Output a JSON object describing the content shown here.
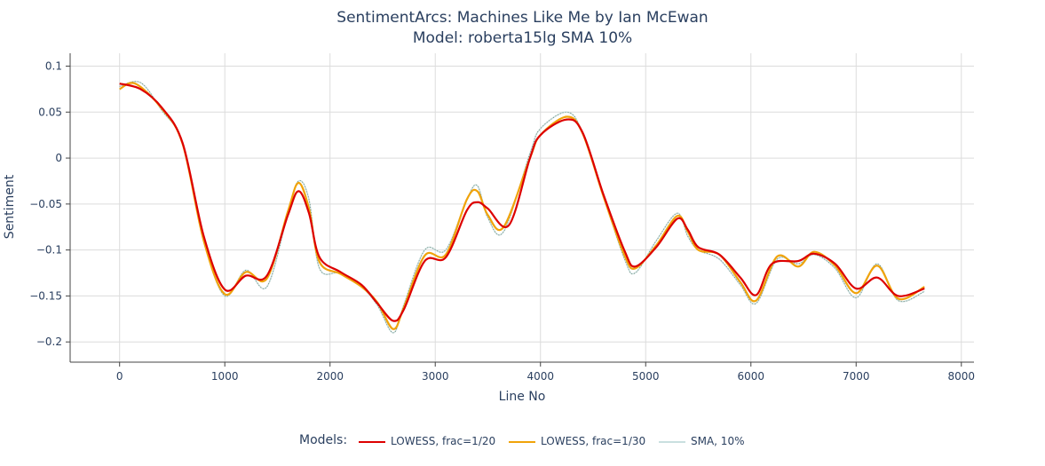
{
  "chart_data": {
    "type": "line",
    "title": "SentimentArcs: Machines Like Me by Ian McEwan",
    "subtitle": "Model: roberta15lg SMA 10%",
    "xlabel": "Line No",
    "ylabel": "Sentiment",
    "xlim": [
      -470,
      8120
    ],
    "ylim": [
      -0.222,
      0.114
    ],
    "x_ticks": [
      0,
      1000,
      2000,
      3000,
      4000,
      5000,
      6000,
      7000,
      8000
    ],
    "x_tick_labels": [
      "0",
      "1000",
      "2000",
      "3000",
      "4000",
      "5000",
      "6000",
      "7000",
      "8000"
    ],
    "y_ticks": [
      0.1,
      0.05,
      0,
      -0.05,
      -0.1,
      -0.15,
      -0.2
    ],
    "y_tick_labels": [
      "0.1",
      "0.05",
      "0",
      "−0.05",
      "−0.1",
      "−0.15",
      "−0.2"
    ],
    "grid": true,
    "legend": {
      "title": "Models:",
      "placement": "bottom-center",
      "entries": [
        "LOWESS, frac=1/20",
        "LOWESS, frac=1/30",
        "SMA, 10%"
      ]
    },
    "series": [
      {
        "name": "LOWESS, frac=1/20",
        "color": "#dd0000",
        "x": [
          0,
          200,
          400,
          600,
          800,
          1000,
          1200,
          1400,
          1600,
          1700,
          1800,
          1900,
          2100,
          2300,
          2450,
          2600,
          2700,
          2900,
          3100,
          3300,
          3400,
          3500,
          3700,
          3900,
          4000,
          4250,
          4400,
          4600,
          4800,
          4900,
          5100,
          5300,
          5400,
          5500,
          5700,
          5900,
          6050,
          6200,
          6450,
          6600,
          6800,
          7000,
          7200,
          7400,
          7650
        ],
        "y": [
          0.081,
          0.075,
          0.055,
          0.016,
          -0.085,
          -0.143,
          -0.128,
          -0.128,
          -0.062,
          -0.036,
          -0.06,
          -0.108,
          -0.124,
          -0.138,
          -0.158,
          -0.177,
          -0.165,
          -0.112,
          -0.108,
          -0.057,
          -0.048,
          -0.055,
          -0.073,
          0.0,
          0.025,
          0.042,
          0.028,
          -0.04,
          -0.101,
          -0.118,
          -0.097,
          -0.066,
          -0.078,
          -0.097,
          -0.105,
          -0.13,
          -0.149,
          -0.115,
          -0.112,
          -0.104,
          -0.115,
          -0.142,
          -0.13,
          -0.15,
          -0.142
        ]
      },
      {
        "name": "LOWESS, frac=1/30",
        "color": "#f0a30a",
        "x": [
          0,
          150,
          400,
          600,
          800,
          1000,
          1200,
          1400,
          1600,
          1700,
          1800,
          1900,
          2100,
          2300,
          2450,
          2600,
          2700,
          2900,
          3100,
          3300,
          3400,
          3500,
          3650,
          3900,
          4000,
          4250,
          4400,
          4600,
          4800,
          4900,
          5100,
          5300,
          5400,
          5500,
          5700,
          5900,
          6050,
          6250,
          6450,
          6600,
          6800,
          7000,
          7200,
          7400,
          7650
        ],
        "y": [
          0.075,
          0.081,
          0.054,
          0.015,
          -0.09,
          -0.148,
          -0.124,
          -0.131,
          -0.058,
          -0.027,
          -0.055,
          -0.113,
          -0.126,
          -0.14,
          -0.157,
          -0.186,
          -0.163,
          -0.106,
          -0.105,
          -0.045,
          -0.036,
          -0.062,
          -0.075,
          0.0,
          0.025,
          0.045,
          0.027,
          -0.042,
          -0.106,
          -0.12,
          -0.095,
          -0.063,
          -0.08,
          -0.1,
          -0.105,
          -0.135,
          -0.155,
          -0.107,
          -0.118,
          -0.102,
          -0.117,
          -0.147,
          -0.117,
          -0.153,
          -0.14
        ]
      },
      {
        "name": "SMA, 10%",
        "color": "#c9dfdf",
        "x": [
          0,
          200,
          400,
          600,
          800,
          1000,
          1200,
          1400,
          1600,
          1700,
          1800,
          1900,
          2100,
          2300,
          2450,
          2600,
          2700,
          2900,
          3100,
          3300,
          3400,
          3500,
          3650,
          3900,
          4000,
          4250,
          4400,
          4600,
          4800,
          4900,
          5100,
          5300,
          5400,
          5500,
          5700,
          5900,
          6050,
          6250,
          6450,
          6600,
          6800,
          7000,
          7200,
          7400,
          7650
        ],
        "y": [
          0.078,
          0.082,
          0.052,
          0.016,
          -0.09,
          -0.15,
          -0.122,
          -0.14,
          -0.06,
          -0.025,
          -0.045,
          -0.12,
          -0.125,
          -0.14,
          -0.16,
          -0.19,
          -0.16,
          -0.1,
          -0.1,
          -0.045,
          -0.03,
          -0.065,
          -0.08,
          0.005,
          0.032,
          0.05,
          0.028,
          -0.042,
          -0.11,
          -0.125,
          -0.09,
          -0.06,
          -0.085,
          -0.1,
          -0.11,
          -0.138,
          -0.158,
          -0.11,
          -0.115,
          -0.105,
          -0.12,
          -0.152,
          -0.115,
          -0.155,
          -0.145
        ]
      }
    ]
  }
}
